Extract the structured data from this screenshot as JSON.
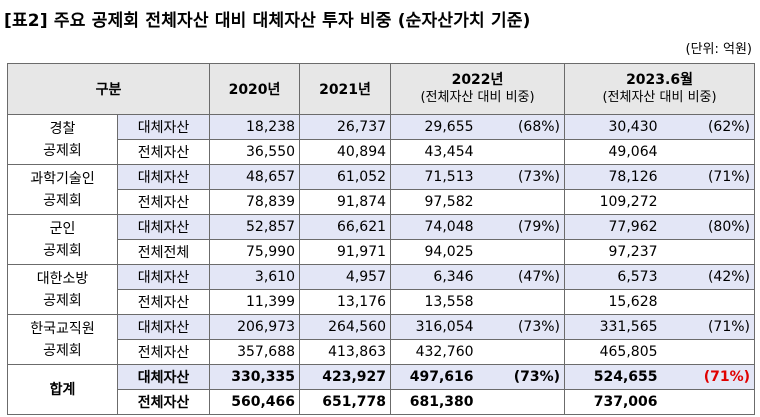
{
  "title": "[표2] 주요 공제회 전체자산 대비 대체자산 투자 비중 (순자산가치 기준)",
  "unit": "(단위: 억원)",
  "header": {
    "group": "구분",
    "y2020": "2020년",
    "y2021": "2021년",
    "y2022": "2022년",
    "y2022_sub": "(전체자산 대비 비중)",
    "y2023": "2023.6월",
    "y2023_sub": "(전체자산 대비 비중)"
  },
  "groups": [
    {
      "org": [
        "경찰",
        "공제회"
      ],
      "alt": {
        "kind": "대체자산",
        "v2020": "18,238",
        "v2021": "26,737",
        "v2022": "29,655",
        "p2022": "(68%)",
        "v2023": "30,430",
        "p2023": "(62%)"
      },
      "tot": {
        "kind": "전체자산",
        "v2020": "36,550",
        "v2021": "40,894",
        "v2022": "43,454",
        "v2023": "49,064"
      }
    },
    {
      "org": [
        "과학기술인",
        "공제회"
      ],
      "alt": {
        "kind": "대체자산",
        "v2020": "48,657",
        "v2021": "61,052",
        "v2022": "71,513",
        "p2022": "(73%)",
        "v2023": "78,126",
        "p2023": "(71%)"
      },
      "tot": {
        "kind": "전체자산",
        "v2020": "78,839",
        "v2021": "91,874",
        "v2022": "97,582",
        "v2023": "109,272"
      }
    },
    {
      "org": [
        "군인",
        "공제회"
      ],
      "alt": {
        "kind": "대체자산",
        "v2020": "52,857",
        "v2021": "66,621",
        "v2022": "74,048",
        "p2022": "(79%)",
        "v2023": "77,962",
        "p2023": "(80%)"
      },
      "tot": {
        "kind": "전체전체",
        "v2020": "75,990",
        "v2021": "91,971",
        "v2022": "94,025",
        "v2023": "97,237"
      }
    },
    {
      "org": [
        "대한소방",
        "공제회"
      ],
      "alt": {
        "kind": "대체자산",
        "v2020": "3,610",
        "v2021": "4,957",
        "v2022": "6,346",
        "p2022": "(47%)",
        "v2023": "6,573",
        "p2023": "(42%)"
      },
      "tot": {
        "kind": "전체자산",
        "v2020": "11,399",
        "v2021": "13,176",
        "v2022": "13,558",
        "v2023": "15,628"
      }
    },
    {
      "org": [
        "한국교직원",
        "공제회"
      ],
      "alt": {
        "kind": "대체자산",
        "v2020": "206,973",
        "v2021": "264,560",
        "v2022": "316,054",
        "p2022": "(73%)",
        "v2023": "331,565",
        "p2023": "(71%)"
      },
      "tot": {
        "kind": "전체자산",
        "v2020": "357,688",
        "v2021": "413,863",
        "v2022": "432,760",
        "v2023": "465,805"
      }
    }
  ],
  "total": {
    "org": "합계",
    "alt": {
      "kind": "대체자산",
      "v2020": "330,335",
      "v2021": "423,927",
      "v2022": "497,616",
      "p2022": "(73%)",
      "v2023": "524,655",
      "p2023": "(71%)"
    },
    "tot": {
      "kind": "전체자산",
      "v2020": "560,466",
      "v2021": "651,778",
      "v2022": "681,380",
      "v2023": "737,006"
    }
  }
}
